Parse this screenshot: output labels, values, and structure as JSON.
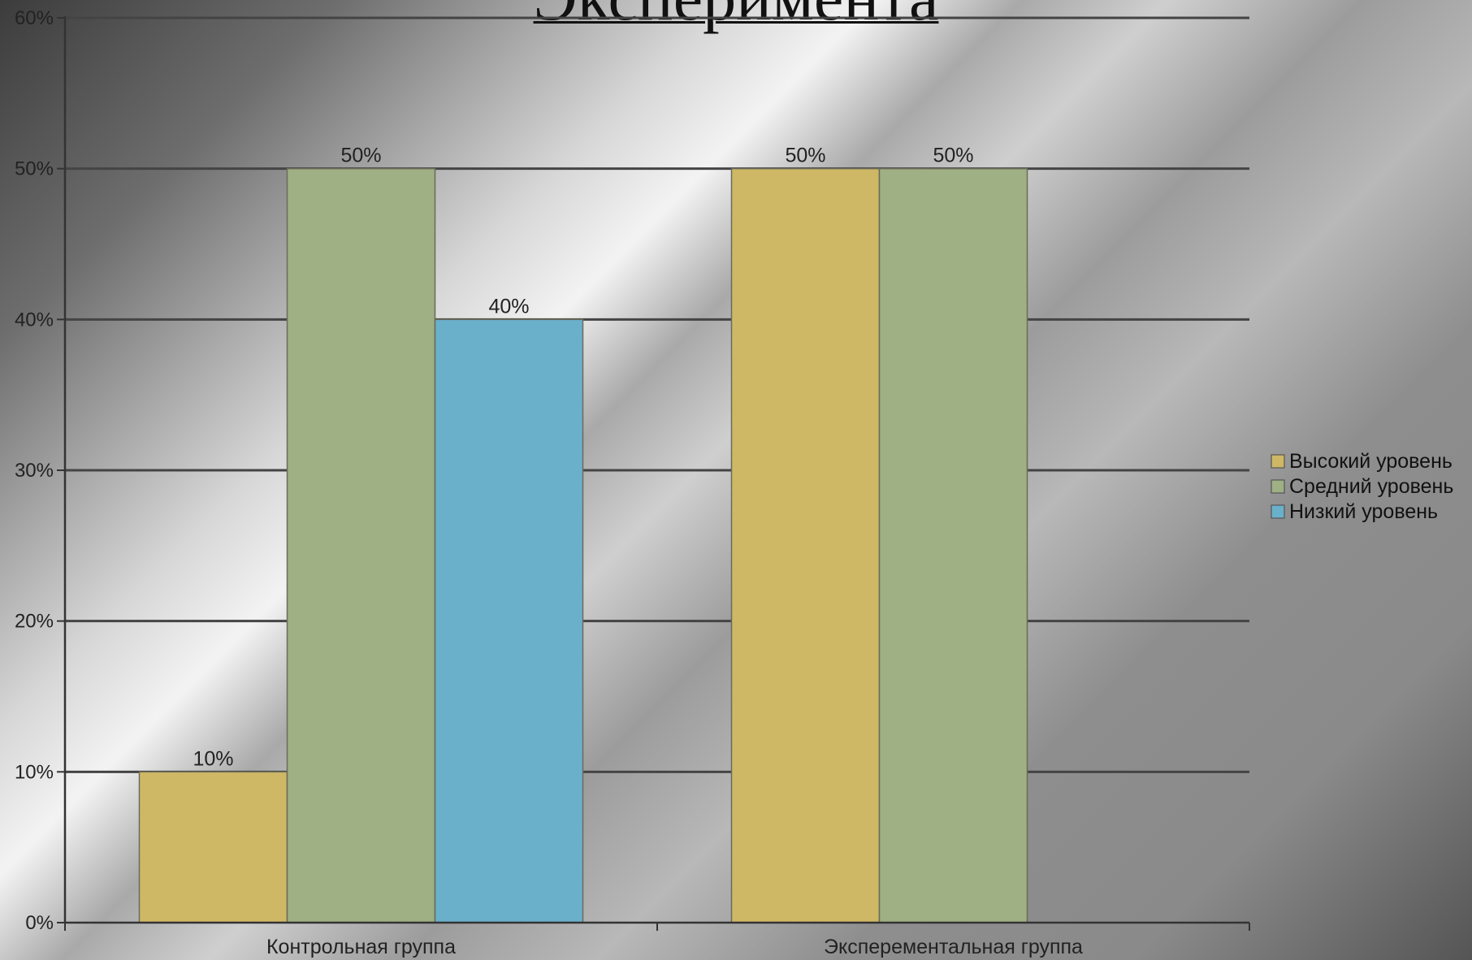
{
  "slide": {
    "title": "Эксперимента"
  },
  "chart_data": {
    "type": "bar",
    "categories": [
      "Контрольная группа",
      "Эксперементальная группа"
    ],
    "series": [
      {
        "name": "Высокий уровень",
        "color": "#cfb865",
        "values": [
          10,
          50
        ]
      },
      {
        "name": "Средний уровень",
        "color": "#9eb084",
        "values": [
          50,
          50
        ]
      },
      {
        "name": "Низкий уровень",
        "color": "#6ab0cb",
        "values": [
          40,
          null
        ]
      }
    ],
    "data_labels": [
      [
        "10%",
        "50%"
      ],
      [
        "50%",
        "50%"
      ],
      [
        "40%",
        null
      ]
    ],
    "y_ticks": [
      "0%",
      "10%",
      "20%",
      "30%",
      "40%",
      "50%",
      "60%"
    ],
    "ylim": [
      0,
      60
    ],
    "y_unit": "%",
    "grid": true,
    "legend_position": "right"
  }
}
